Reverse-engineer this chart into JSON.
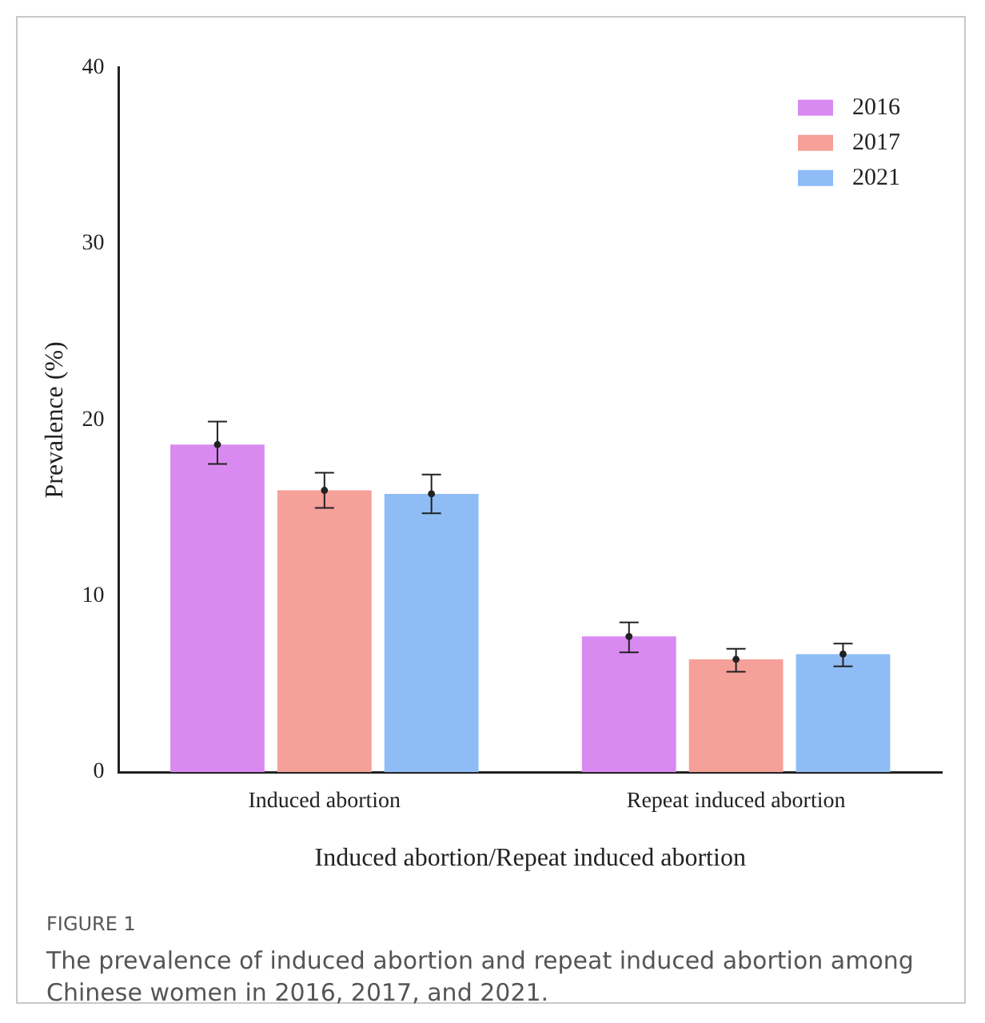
{
  "chart_data": {
    "type": "bar",
    "ylabel": "Prevalence (%)",
    "xlabel": "Induced abortion/Repeat induced abortion",
    "categories": [
      "Induced abortion",
      "Repeat induced abortion"
    ],
    "series": [
      {
        "name": "2016",
        "color": "#d98af0",
        "values": [
          18.6,
          7.7
        ],
        "errors": [
          [
            17.5,
            19.9
          ],
          [
            6.8,
            8.5
          ]
        ]
      },
      {
        "name": "2017",
        "color": "#f6a09a",
        "values": [
          16.0,
          6.4
        ],
        "errors": [
          [
            15.0,
            17.0
          ],
          [
            5.7,
            7.0
          ]
        ]
      },
      {
        "name": "2021",
        "color": "#8fbcf5",
        "values": [
          15.8,
          6.7
        ],
        "errors": [
          [
            14.7,
            16.9
          ],
          [
            6.0,
            7.3
          ]
        ]
      },
      {
        "type": "scatter",
        "color": "#222222",
        "x": [
          "Induced abortion",
          "Repeat induced abortion"
        ],
        "values": [
          18.6,
          7.7
        ]
      },
      {
        "type": "scatter",
        "color": "#222222",
        "x": [
          "Induced abortion",
          "Repeat induced abortion"
        ],
        "values": [
          16.0,
          6.4
        ]
      },
      {
        "type": "scatter",
        "color": "#222222",
        "x": [
          "Induced abortion",
          "Repeat induced abortion"
        ],
        "values": [
          15.8,
          6.7
        ]
      }
    ],
    "ylim": [
      0,
      40
    ],
    "yticks": [
      0,
      10,
      20,
      30,
      40
    ],
    "grid": false,
    "legend": "top right",
    "annotations": [
      "FIGURE 1",
      "The prevalence of induced abortion and repeat induced abortion among Chinese women in 2016, 2017, and 2021."
    ]
  }
}
